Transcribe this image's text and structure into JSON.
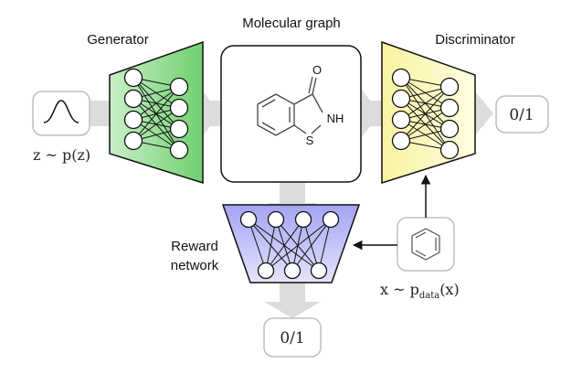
{
  "labels": {
    "generator": "Generator",
    "molecular_graph": "Molecular graph",
    "discriminator": "Discriminator",
    "reward_line1": "Reward",
    "reward_line2": "network"
  },
  "math": {
    "z_dist_left": "z ~ p(z)",
    "x_main": "x ~ p",
    "x_sub": "data",
    "x_tail": "(x)"
  },
  "outputs": {
    "discriminator_output": "0/1",
    "reward_output": "0/1"
  },
  "molecule": {
    "atom_o": "O",
    "atom_nh": "NH",
    "atom_s": "S"
  },
  "icons": {
    "noise": "gaussian-curve-icon",
    "data": "benzene-ring-icon"
  },
  "colors": {
    "generator_fill": "#7fd67f",
    "discriminator_fill": "#f4ef8e",
    "reward_fill": "#a9a9f2",
    "arrow_gray": "#d9d9d9",
    "node_fill": "#ffffff"
  }
}
